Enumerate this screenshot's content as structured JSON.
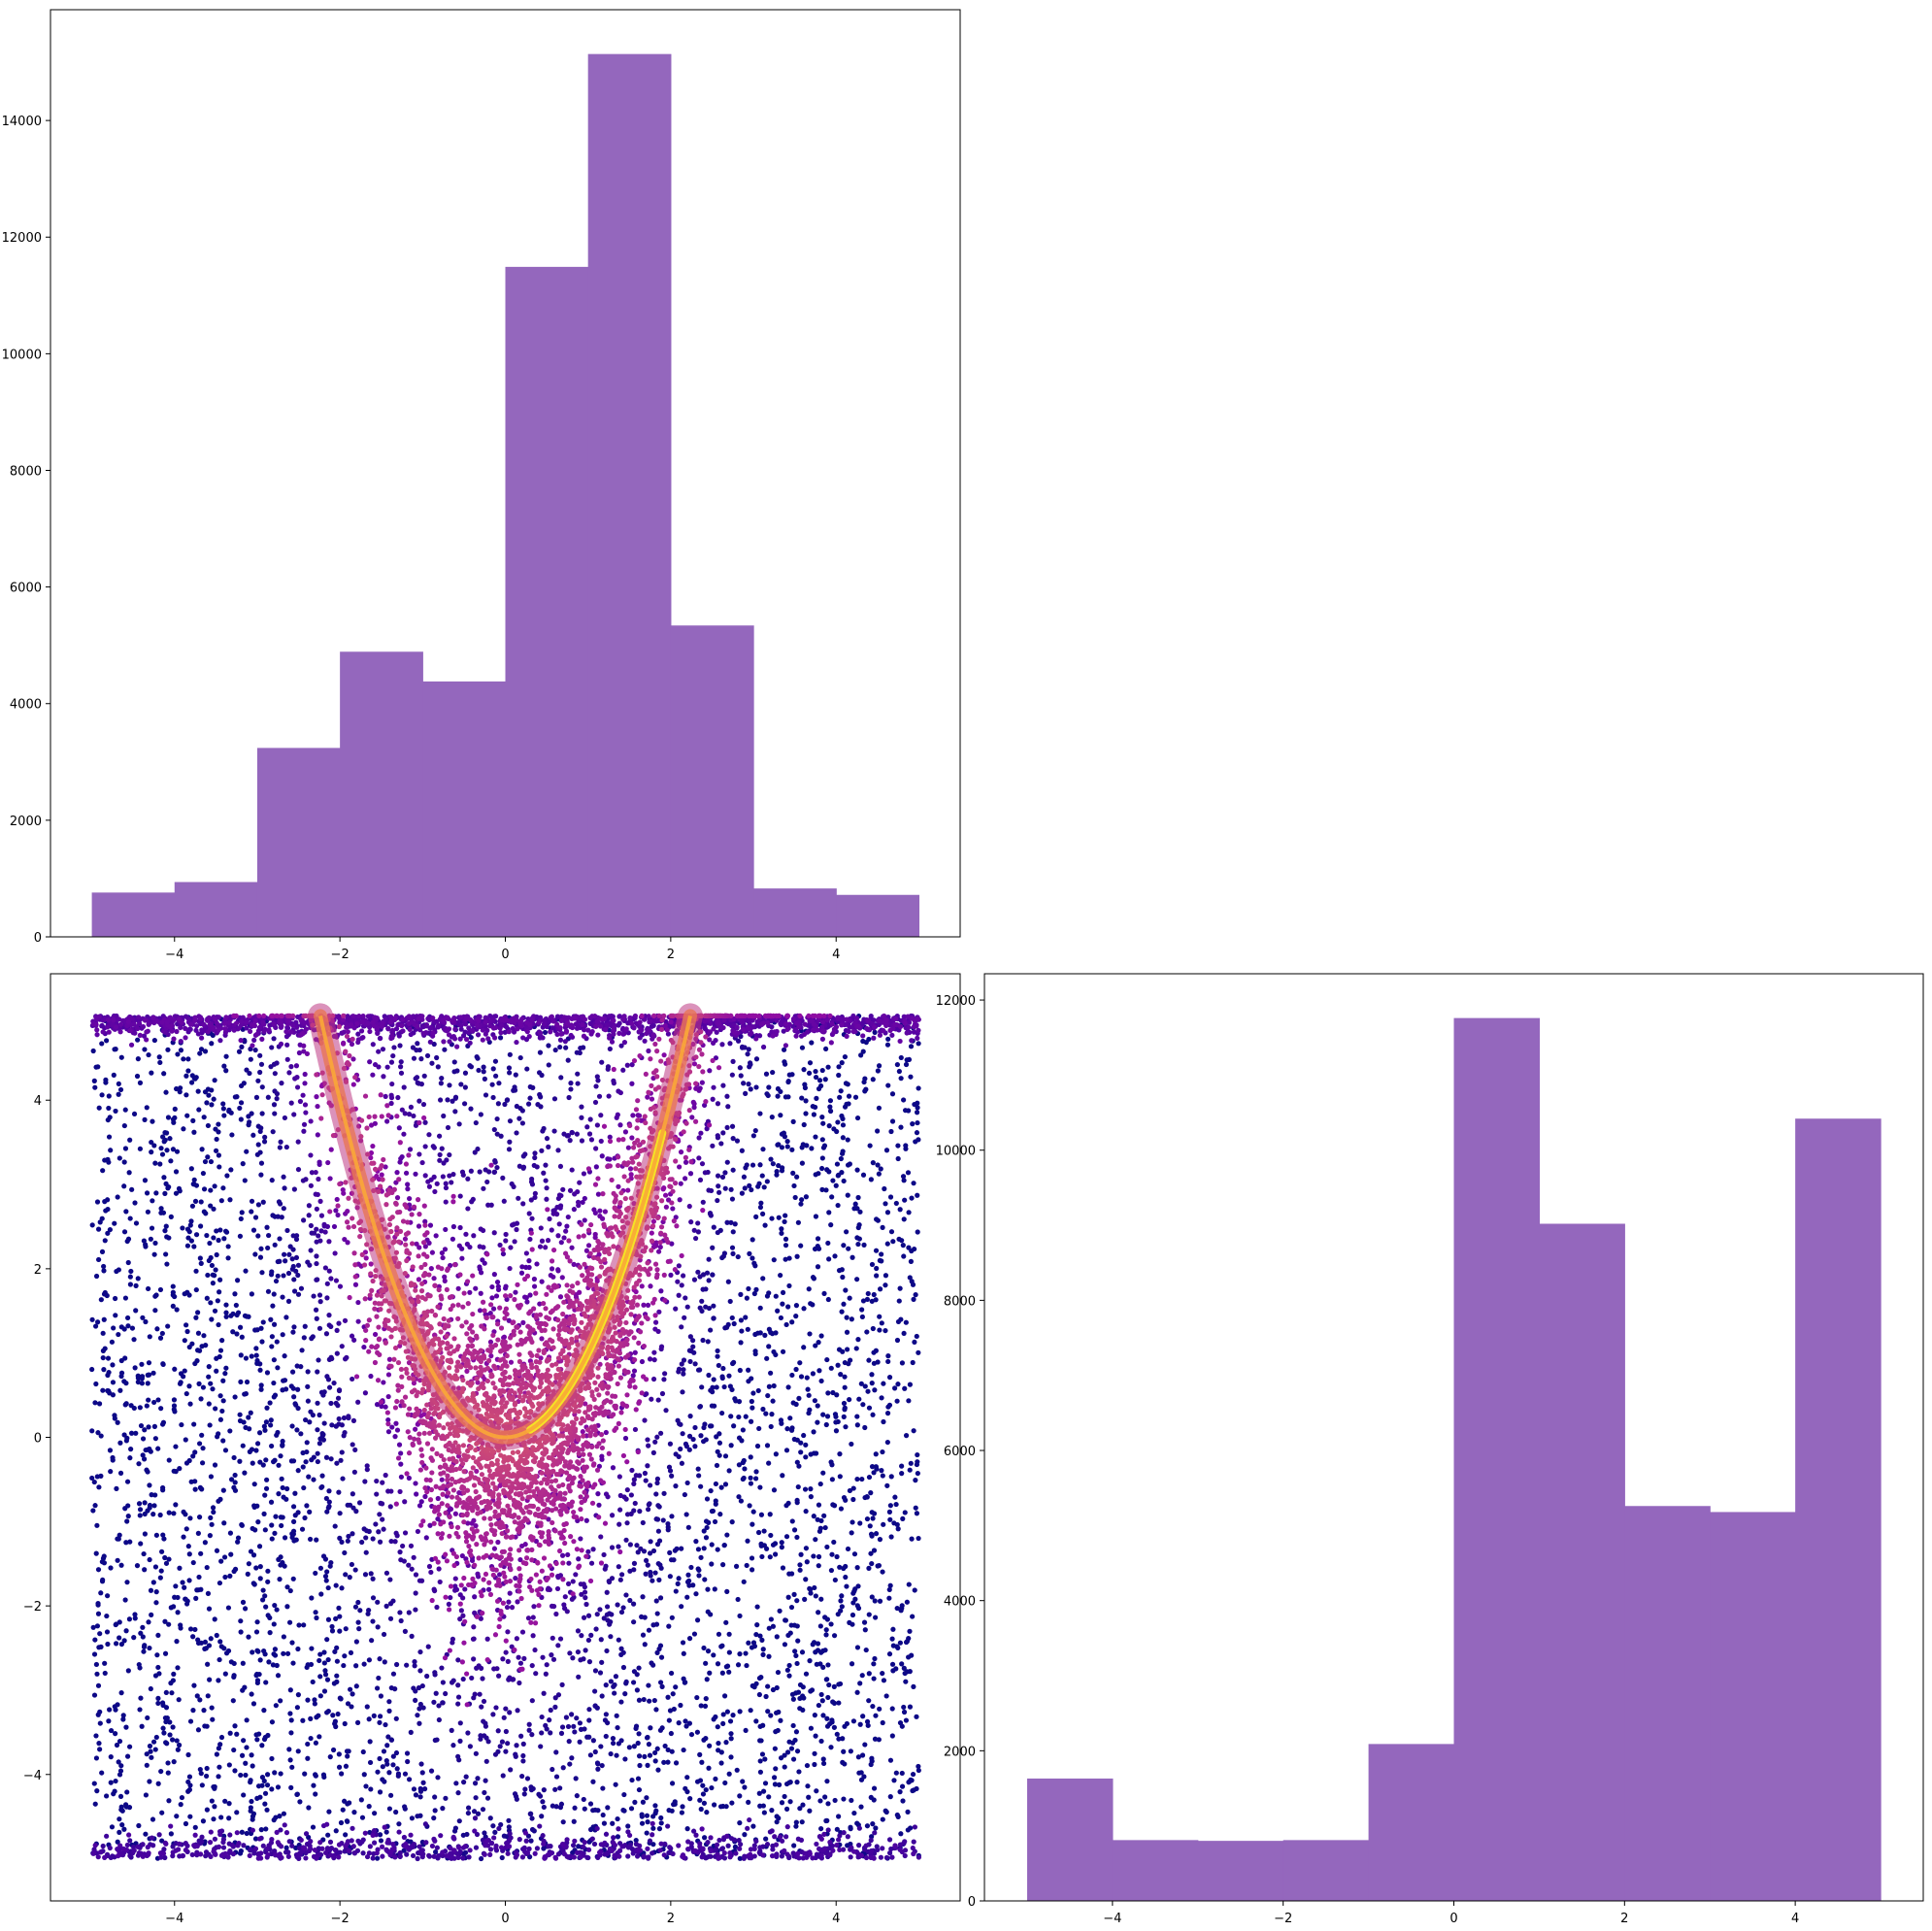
{
  "chart_data": [
    {
      "type": "bar",
      "title": "",
      "xlabel": "",
      "ylabel": "",
      "bin_edges": [
        -5,
        -4,
        -3,
        -2,
        -1,
        0,
        1,
        2,
        3,
        4,
        5
      ],
      "values": [
        760,
        940,
        3240,
        4890,
        4380,
        11490,
        15140,
        5340,
        830,
        720
      ],
      "xlim": [
        -5.5,
        5.5
      ],
      "ylim": [
        0,
        15900
      ],
      "xticks": [
        -4,
        -2,
        0,
        2,
        4
      ],
      "xtick_labels": [
        "−4",
        "−2",
        "0",
        "2",
        "4"
      ],
      "yticks": [
        0,
        2000,
        4000,
        6000,
        8000,
        10000,
        12000,
        14000
      ],
      "ytick_labels": [
        "0",
        "2000",
        "4000",
        "6000",
        "8000",
        "10000",
        "12000",
        "14000"
      ],
      "color": "#9467bd"
    },
    {
      "type": "scatter",
      "title": "",
      "xlabel": "",
      "ylabel": "",
      "description_of_points": "density-colored scatter; points uniform on [-5,5] in x, concentrated along the curve y = x^2 (clipped to y in [-5,5]) with bright yellow high-density band",
      "xlim": [
        -5.5,
        5.5
      ],
      "ylim": [
        -5.5,
        5.5
      ],
      "xticks": [
        -4,
        -2,
        0,
        2,
        4
      ],
      "xtick_labels": [
        "−4",
        "−2",
        "0",
        "2",
        "4"
      ],
      "yticks": [
        -4,
        -2,
        0,
        2,
        4
      ],
      "ytick_labels": [
        "−4",
        "−2",
        "0",
        "2",
        "4"
      ],
      "colormap": "plasma"
    },
    {
      "type": "bar",
      "title": "",
      "xlabel": "",
      "ylabel": "",
      "bin_edges": [
        -5,
        -4,
        -3,
        -2,
        -1,
        0,
        1,
        2,
        3,
        4,
        5
      ],
      "values": [
        1630,
        810,
        800,
        810,
        2090,
        11760,
        9020,
        5260,
        5180,
        10420
      ],
      "xlim": [
        -5.5,
        5.5
      ],
      "ylim": [
        0,
        12350
      ],
      "xticks": [
        -4,
        -2,
        0,
        2,
        4
      ],
      "xtick_labels": [
        "−4",
        "−2",
        "0",
        "2",
        "4"
      ],
      "yticks": [
        0,
        2000,
        4000,
        6000,
        8000,
        10000,
        12000
      ],
      "ytick_labels": [
        "0",
        "2000",
        "4000",
        "6000",
        "8000",
        "10000",
        "12000"
      ],
      "color": "#9467bd"
    }
  ]
}
